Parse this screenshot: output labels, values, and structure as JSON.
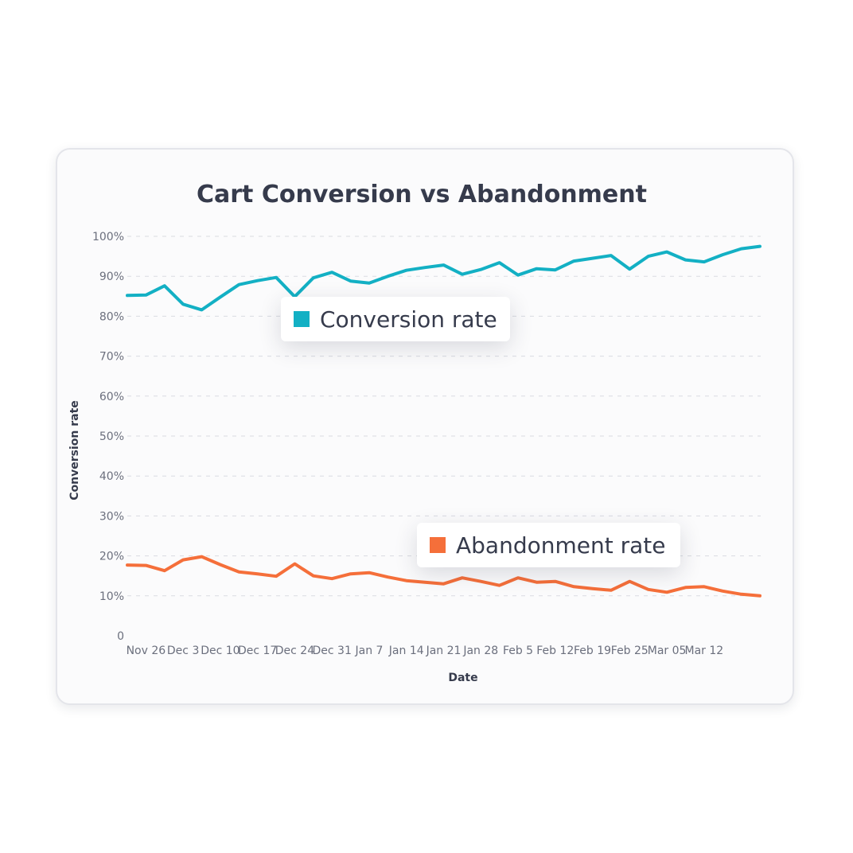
{
  "chart_data": {
    "type": "line",
    "title": "Cart Conversion vs Abandonment",
    "xlabel": "Date",
    "ylabel": "Conversion rate",
    "ylim": [
      0,
      100
    ],
    "y_ticks": [
      0,
      10,
      20,
      30,
      40,
      50,
      60,
      70,
      80,
      90,
      100
    ],
    "y_tick_labels": [
      "0",
      "10%",
      "20%",
      "30%",
      "40%",
      "50%",
      "60%",
      "70%",
      "80%",
      "90%",
      "100%"
    ],
    "x_ticks": [
      {
        "index": 1,
        "label": "Nov 26"
      },
      {
        "index": 3,
        "label": "Dec 3"
      },
      {
        "index": 5,
        "label": "Dec 10"
      },
      {
        "index": 7,
        "label": "Dec 17"
      },
      {
        "index": 9,
        "label": "Dec 24"
      },
      {
        "index": 11,
        "label": "Dec 31"
      },
      {
        "index": 13,
        "label": "Jan 7"
      },
      {
        "index": 15,
        "label": "Jan 14"
      },
      {
        "index": 17,
        "label": "Jan 21"
      },
      {
        "index": 19,
        "label": "Jan 28"
      },
      {
        "index": 21,
        "label": "Feb 5"
      },
      {
        "index": 23,
        "label": "Feb 12"
      },
      {
        "index": 25,
        "label": "Feb 19"
      },
      {
        "index": 27,
        "label": "Feb 25"
      },
      {
        "index": 29,
        "label": "Mar 05"
      },
      {
        "index": 31,
        "label": "Mar 12"
      }
    ],
    "grid": true,
    "series": [
      {
        "name": "Conversion rate",
        "color": "#13b0c4",
        "values": [
          85.2,
          85.3,
          87.6,
          83.0,
          81.6,
          84.8,
          87.9,
          88.9,
          89.7,
          84.9,
          89.6,
          91.0,
          88.8,
          88.3,
          90.0,
          91.5,
          92.2,
          92.8,
          90.5,
          91.7,
          93.4,
          90.3,
          91.9,
          91.6,
          93.8,
          94.5,
          95.2,
          91.8,
          95.0,
          96.1,
          94.1,
          93.6,
          95.4,
          96.9,
          97.5
        ]
      },
      {
        "name": "Abandonment rate",
        "color": "#f56f3a",
        "values": [
          17.7,
          17.6,
          16.3,
          19.0,
          19.8,
          17.8,
          16.0,
          15.5,
          14.9,
          18.0,
          15.0,
          14.3,
          15.5,
          15.8,
          14.7,
          13.8,
          13.4,
          13.0,
          14.5,
          13.6,
          12.6,
          14.5,
          13.4,
          13.6,
          12.3,
          11.8,
          11.4,
          13.6,
          11.6,
          10.9,
          12.1,
          12.3,
          11.2,
          10.4,
          10.0
        ]
      }
    ],
    "legend": [
      {
        "name": "Conversion rate",
        "color": "#13b0c4",
        "placement": "upper-left"
      },
      {
        "name": "Abandonment rate",
        "color": "#f56f3a",
        "placement": "lower-center"
      }
    ]
  }
}
